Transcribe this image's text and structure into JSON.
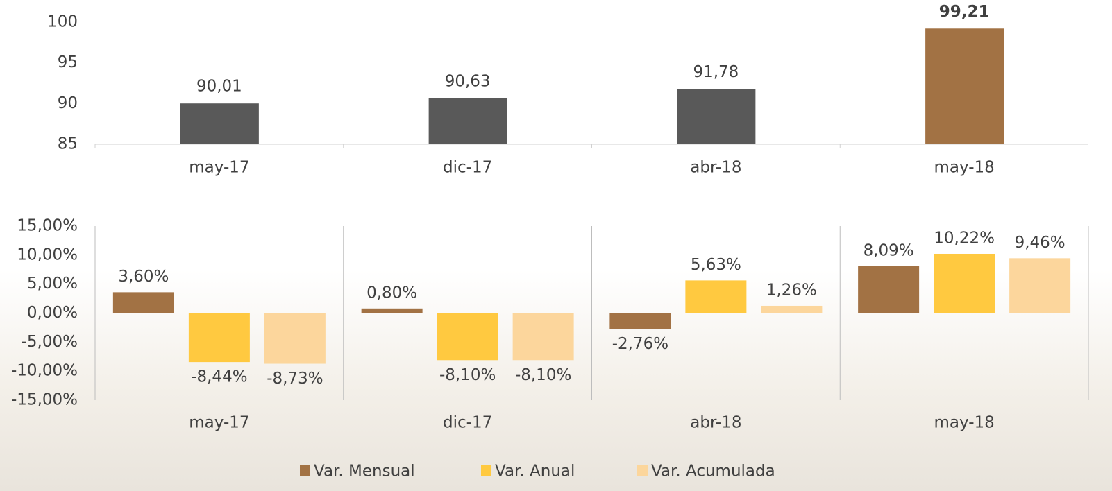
{
  "chart_data": [
    {
      "type": "bar",
      "categories": [
        "may-17",
        "dic-17",
        "abr-18",
        "may-18"
      ],
      "values": [
        90.01,
        90.63,
        91.78,
        99.21
      ],
      "value_labels": [
        "90,01",
        "90,63",
        "91,78",
        "99,21"
      ],
      "colors": [
        "#595959",
        "#595959",
        "#595959",
        "#a27244"
      ],
      "ylim": [
        85,
        100
      ],
      "yticks": [
        85,
        90,
        95,
        100
      ]
    },
    {
      "type": "grouped_bar",
      "categories": [
        "may-17",
        "dic-17",
        "abr-18",
        "may-18"
      ],
      "series": [
        {
          "name": "Var. Mensual",
          "color": "#a27244",
          "values": [
            3.6,
            0.8,
            -2.76,
            8.09
          ],
          "value_labels": [
            "3,60%",
            "0,80%",
            "-2,76%",
            "8,09%"
          ]
        },
        {
          "name": "Var. Anual",
          "color": "#ffc940",
          "values": [
            -8.44,
            -8.1,
            5.63,
            10.22
          ],
          "value_labels": [
            "-8,44%",
            "-8,10%",
            "5,63%",
            "10,22%"
          ]
        },
        {
          "name": "Var. Acumulada",
          "color": "#fcd69c",
          "values": [
            -8.73,
            -8.1,
            1.26,
            9.46
          ],
          "value_labels": [
            "-8,73%",
            "-8,10%",
            "1,26%",
            "9,46%"
          ]
        }
      ],
      "ylim": [
        -15,
        15
      ],
      "yticks": [
        {
          "value": -15,
          "label": "-15,00%"
        },
        {
          "value": -10,
          "label": "-10,00%"
        },
        {
          "value": -5,
          "label": "-5,00%"
        },
        {
          "value": 0,
          "label": "0,00%"
        },
        {
          "value": 5,
          "label": "5,00%"
        },
        {
          "value": 10,
          "label": "10,00%"
        },
        {
          "value": 15,
          "label": "15,00%"
        }
      ],
      "legend": "bottom"
    }
  ]
}
